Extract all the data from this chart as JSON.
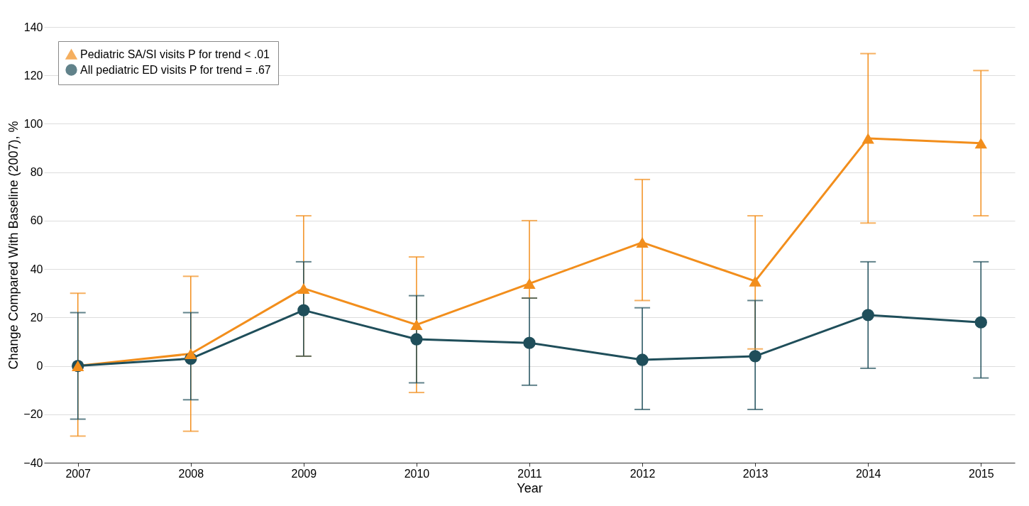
{
  "chart_data": {
    "type": "line",
    "xlabel": "Year",
    "ylabel": "Change Compared With Baseline (2007), %",
    "categories": [
      "2007",
      "2008",
      "2009",
      "2010",
      "2011",
      "2012",
      "2013",
      "2014",
      "2015"
    ],
    "ylim": [
      -40,
      140
    ],
    "yticks": [
      -40,
      -20,
      0,
      20,
      40,
      60,
      80,
      100,
      120,
      140
    ],
    "grid": "y",
    "legend": "top left",
    "series": [
      {
        "name": "Pediatric SA/SI visits P for trend < .01",
        "color": "#f28e1c",
        "marker": "triangle",
        "values": [
          0,
          5,
          32,
          17,
          34,
          51,
          35,
          94,
          92
        ],
        "errors": [
          [
            -29,
            30
          ],
          [
            -27,
            37
          ],
          [
            4,
            62
          ],
          [
            -11,
            45
          ],
          [
            28,
            60
          ],
          [
            27,
            77
          ],
          [
            7,
            62
          ],
          [
            59,
            129
          ],
          [
            62,
            122
          ]
        ]
      },
      {
        "name": "All pediatric ED visits P for trend = .67",
        "color": "#1f4e5a",
        "marker": "circle",
        "values": [
          0,
          3,
          23,
          11,
          9.5,
          2.5,
          4,
          21,
          18
        ],
        "errors": [
          [
            -22,
            22
          ],
          [
            -14,
            22
          ],
          [
            4,
            43
          ],
          [
            -7,
            29
          ],
          [
            -8,
            28
          ],
          [
            -18,
            24
          ],
          [
            -18,
            27
          ],
          [
            -1,
            43
          ],
          [
            -5,
            43
          ]
        ]
      }
    ]
  }
}
